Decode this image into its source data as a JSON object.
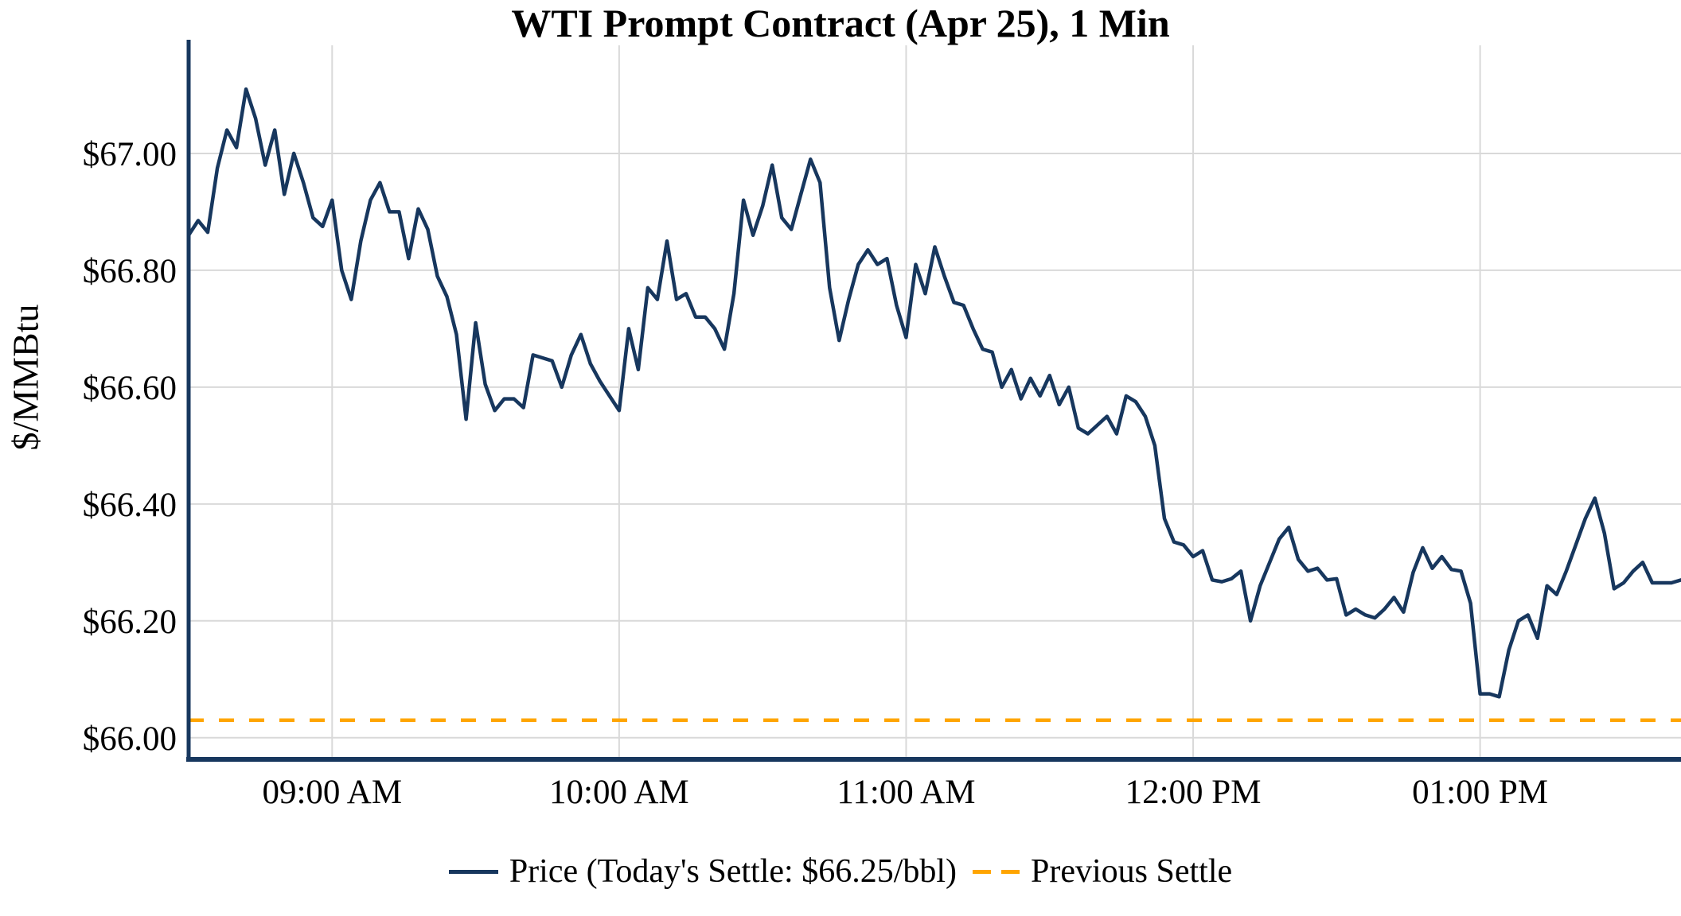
{
  "colors": {
    "line": "#17375E",
    "settle": "#FFA500",
    "grid": "#D9D9D9",
    "text": "#000000",
    "background": "#FFFFFF"
  },
  "chart_data": {
    "type": "line",
    "title": "WTI Prompt Contract (Apr 25), 1 Min",
    "xlabel": "",
    "ylabel": "$/MMBtu",
    "grid": true,
    "legend_position": "bottom-center",
    "x_range": [
      "08:30",
      "13:42"
    ],
    "y_range": [
      65.967,
      67.185
    ],
    "y_ticks": [
      {
        "label": "$66.00",
        "v": 66.0
      },
      {
        "label": "$66.20",
        "v": 66.2
      },
      {
        "label": "$66.40",
        "v": 66.4
      },
      {
        "label": "$66.60",
        "v": 66.6
      },
      {
        "label": "$66.80",
        "v": 66.8
      },
      {
        "label": "$67.00",
        "v": 67.0
      }
    ],
    "x_ticks": [
      {
        "label": "09:00 AM",
        "time": "09:00"
      },
      {
        "label": "10:00 AM",
        "time": "10:00"
      },
      {
        "label": "11:00 AM",
        "time": "11:00"
      },
      {
        "label": "12:00 PM",
        "time": "12:00"
      },
      {
        "label": "01:00 PM",
        "time": "13:00"
      }
    ],
    "previous_settle": 66.03,
    "todays_settle_text": "Today's Settle: $66.25/bbl",
    "legend": [
      {
        "name": "Price (Today's Settle: $66.25/bbl)",
        "color": "#17375E",
        "style": "solid"
      },
      {
        "name": "Previous Settle",
        "color": "#FFA500",
        "style": "dashed"
      }
    ],
    "series": [
      {
        "name": "Price",
        "color": "#17375E",
        "points": [
          [
            "08:30",
            66.86
          ],
          [
            "08:32",
            66.885
          ],
          [
            "08:34",
            66.865
          ],
          [
            "08:36",
            66.975
          ],
          [
            "08:38",
            67.04
          ],
          [
            "08:40",
            67.01
          ],
          [
            "08:42",
            67.11
          ],
          [
            "08:44",
            67.06
          ],
          [
            "08:46",
            66.98
          ],
          [
            "08:48",
            67.04
          ],
          [
            "08:50",
            66.93
          ],
          [
            "08:52",
            67.0
          ],
          [
            "08:54",
            66.95
          ],
          [
            "08:56",
            66.89
          ],
          [
            "08:58",
            66.875
          ],
          [
            "09:00",
            66.92
          ],
          [
            "09:02",
            66.8
          ],
          [
            "09:04",
            66.75
          ],
          [
            "09:06",
            66.85
          ],
          [
            "09:08",
            66.92
          ],
          [
            "09:10",
            66.95
          ],
          [
            "09:12",
            66.9
          ],
          [
            "09:14",
            66.9
          ],
          [
            "09:16",
            66.82
          ],
          [
            "09:18",
            66.905
          ],
          [
            "09:20",
            66.87
          ],
          [
            "09:22",
            66.79
          ],
          [
            "09:24",
            66.755
          ],
          [
            "09:26",
            66.69
          ],
          [
            "09:28",
            66.545
          ],
          [
            "09:30",
            66.71
          ],
          [
            "09:32",
            66.605
          ],
          [
            "09:34",
            66.56
          ],
          [
            "09:36",
            66.58
          ],
          [
            "09:38",
            66.58
          ],
          [
            "09:40",
            66.565
          ],
          [
            "09:42",
            66.655
          ],
          [
            "09:44",
            66.65
          ],
          [
            "09:46",
            66.645
          ],
          [
            "09:48",
            66.6
          ],
          [
            "09:50",
            66.655
          ],
          [
            "09:52",
            66.69
          ],
          [
            "09:54",
            66.64
          ],
          [
            "09:56",
            66.61
          ],
          [
            "09:58",
            66.585
          ],
          [
            "10:00",
            66.56
          ],
          [
            "10:02",
            66.7
          ],
          [
            "10:04",
            66.63
          ],
          [
            "10:06",
            66.77
          ],
          [
            "10:08",
            66.75
          ],
          [
            "10:10",
            66.85
          ],
          [
            "10:12",
            66.75
          ],
          [
            "10:14",
            66.76
          ],
          [
            "10:16",
            66.72
          ],
          [
            "10:18",
            66.72
          ],
          [
            "10:20",
            66.7
          ],
          [
            "10:22",
            66.665
          ],
          [
            "10:24",
            66.76
          ],
          [
            "10:26",
            66.92
          ],
          [
            "10:28",
            66.86
          ],
          [
            "10:30",
            66.91
          ],
          [
            "10:32",
            66.98
          ],
          [
            "10:34",
            66.89
          ],
          [
            "10:36",
            66.87
          ],
          [
            "10:38",
            66.93
          ],
          [
            "10:40",
            66.99
          ],
          [
            "10:42",
            66.95
          ],
          [
            "10:44",
            66.77
          ],
          [
            "10:46",
            66.68
          ],
          [
            "10:48",
            66.75
          ],
          [
            "10:50",
            66.81
          ],
          [
            "10:52",
            66.835
          ],
          [
            "10:54",
            66.81
          ],
          [
            "10:56",
            66.82
          ],
          [
            "10:58",
            66.74
          ],
          [
            "11:00",
            66.685
          ],
          [
            "11:02",
            66.81
          ],
          [
            "11:04",
            66.76
          ],
          [
            "11:06",
            66.84
          ],
          [
            "11:08",
            66.79
          ],
          [
            "11:10",
            66.745
          ],
          [
            "11:12",
            66.74
          ],
          [
            "11:14",
            66.7
          ],
          [
            "11:16",
            66.665
          ],
          [
            "11:18",
            66.66
          ],
          [
            "11:20",
            66.6
          ],
          [
            "11:22",
            66.63
          ],
          [
            "11:24",
            66.58
          ],
          [
            "11:26",
            66.615
          ],
          [
            "11:28",
            66.585
          ],
          [
            "11:30",
            66.62
          ],
          [
            "11:32",
            66.57
          ],
          [
            "11:34",
            66.6
          ],
          [
            "11:36",
            66.53
          ],
          [
            "11:38",
            66.52
          ],
          [
            "11:40",
            66.535
          ],
          [
            "11:42",
            66.55
          ],
          [
            "11:44",
            66.52
          ],
          [
            "11:46",
            66.585
          ],
          [
            "11:48",
            66.575
          ],
          [
            "11:50",
            66.55
          ],
          [
            "11:52",
            66.5
          ],
          [
            "11:54",
            66.375
          ],
          [
            "11:56",
            66.335
          ],
          [
            "11:58",
            66.33
          ],
          [
            "12:00",
            66.31
          ],
          [
            "12:02",
            66.32
          ],
          [
            "12:04",
            66.27
          ],
          [
            "12:06",
            66.267
          ],
          [
            "12:08",
            66.272
          ],
          [
            "12:10",
            66.285
          ],
          [
            "12:12",
            66.2
          ],
          [
            "12:14",
            66.26
          ],
          [
            "12:16",
            66.3
          ],
          [
            "12:18",
            66.34
          ],
          [
            "12:20",
            66.36
          ],
          [
            "12:22",
            66.305
          ],
          [
            "12:24",
            66.285
          ],
          [
            "12:26",
            66.29
          ],
          [
            "12:28",
            66.27
          ],
          [
            "12:30",
            66.272
          ],
          [
            "12:32",
            66.21
          ],
          [
            "12:34",
            66.22
          ],
          [
            "12:36",
            66.21
          ],
          [
            "12:38",
            66.205
          ],
          [
            "12:40",
            66.22
          ],
          [
            "12:42",
            66.24
          ],
          [
            "12:44",
            66.215
          ],
          [
            "12:46",
            66.283
          ],
          [
            "12:48",
            66.325
          ],
          [
            "12:50",
            66.29
          ],
          [
            "12:52",
            66.31
          ],
          [
            "12:54",
            66.288
          ],
          [
            "12:56",
            66.285
          ],
          [
            "12:58",
            66.23
          ],
          [
            "13:00",
            66.075
          ],
          [
            "13:02",
            66.075
          ],
          [
            "13:04",
            66.07
          ],
          [
            "13:06",
            66.15
          ],
          [
            "13:08",
            66.2
          ],
          [
            "13:10",
            66.21
          ],
          [
            "13:12",
            66.17
          ],
          [
            "13:14",
            66.26
          ],
          [
            "13:16",
            66.245
          ],
          [
            "13:18",
            66.285
          ],
          [
            "13:20",
            66.33
          ],
          [
            "13:22",
            66.375
          ],
          [
            "13:24",
            66.41
          ],
          [
            "13:26",
            66.35
          ],
          [
            "13:28",
            66.255
          ],
          [
            "13:30",
            66.265
          ],
          [
            "13:32",
            66.285
          ],
          [
            "13:34",
            66.3
          ],
          [
            "13:36",
            66.265
          ],
          [
            "13:38",
            66.265
          ],
          [
            "13:40",
            66.265
          ],
          [
            "13:42",
            66.27
          ]
        ]
      }
    ]
  }
}
